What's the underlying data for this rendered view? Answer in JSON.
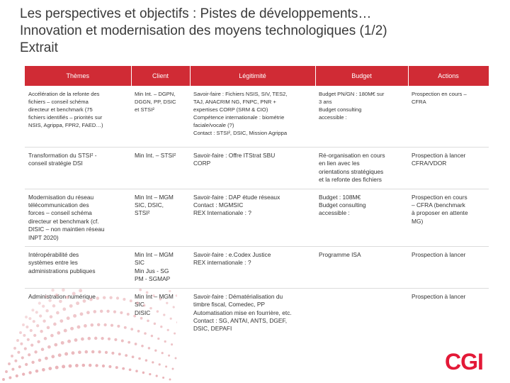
{
  "title": {
    "line1": "Les perspectives et objectifs : Pistes de développements…",
    "line2": "Innovation et modernisation des moyens technologiques (1/2)",
    "line3": "Extrait"
  },
  "table": {
    "headers": [
      "Thèmes",
      "Client",
      "Légitimité",
      "Budget",
      "Actions"
    ],
    "rows": [
      {
        "theme": [
          "Accélération de la refonte des",
          "fichiers – conseil schéma",
          "directeur et benchmark (75",
          "fichiers identifiés – priorités sur",
          "NSIS, Agrippa, FPR2, FAED…)"
        ],
        "client": [
          "Min Int. – DGPN,",
          "DGGN, PP, DSIC",
          "et STSI²"
        ],
        "legitimite": [
          "Savoir-faire : Fichiers NSIS, SIV, TES2,",
          "TAJ, ANACRIM NG, FNPC, PNR +",
          "expertises CORP (SRM & CIO)",
          "Compétence internationale : biométrie",
          "faciale/vocale (?)",
          "Contact : STSI², DSIC, Mission Agrippa"
        ],
        "budget": [
          "Budget PN/GN : 180M€ sur",
          "3 ans",
          "Budget consulting",
          "accessible :"
        ],
        "actions": [
          "Prospection en cours –",
          "CFRA"
        ]
      },
      {
        "theme": [
          "Transformation du STSI² -",
          "conseil stratégie DSI"
        ],
        "client": [
          "Min Int. – STSI²"
        ],
        "legitimite": [
          "Savoir-faire : Offre ITStrat SBU",
          "CORP"
        ],
        "budget": [
          "Ré-organisation en cours",
          "en lien avec les",
          "orientations stratégiques",
          "et la refonte des fichiers"
        ],
        "actions": [
          "Prospection à lancer",
          "CFRA/VDOR"
        ]
      },
      {
        "theme": [
          "Modernisation du réseau",
          "télécommunication des",
          "forces – conseil schéma",
          "directeur et benchmark (cf.",
          "DISIC – non maintien réseau",
          "INPT 2020)"
        ],
        "client": [
          "Min Int – MGM",
          "SIC, DSIC,",
          "STSI²"
        ],
        "legitimite": [
          "Savoir-faire : DAP étude réseaux",
          "Contact : MGMSIC",
          "REX Internationale : ?"
        ],
        "budget": [
          "Budget : 108M€",
          "Budget consulting",
          "accessible :"
        ],
        "actions": [
          "Prospection en cours",
          "– CFRA (benchmark",
          "à proposer en attente",
          "MG)"
        ]
      },
      {
        "theme": [
          "Intéropérabilité des",
          "systèmes entre les",
          "administrations publiques"
        ],
        "client": [
          "Min Int – MGM",
          "SIC",
          "Min Jus - SG",
          "PM - SGMAP"
        ],
        "legitimite": [
          "Savoir-faire : e.Codex Justice",
          "REX internationale : ?"
        ],
        "budget": [
          "Programme ISA"
        ],
        "actions": [
          "Prospection à lancer"
        ]
      },
      {
        "theme": [
          "Administration numérique"
        ],
        "client": [
          "Min Int – MGM",
          "SIC",
          "DISIC"
        ],
        "legitimite": [
          "Savoir-faire : Dématérialisation du",
          "timbre fiscal, Comedec, PP",
          "Automatisation mise en fourrière, etc.",
          "Contact : SG, ANTAI, ANTS, DGEF,",
          "DSIC, DEPAFI"
        ],
        "budget": [],
        "actions": [
          "Prospection à lancer"
        ]
      }
    ]
  },
  "logo": {
    "text": "CGI",
    "color": "#e31937"
  },
  "colors": {
    "header_bg": "#d02b35",
    "accent": "#e31937",
    "dots": "#e6a7ad"
  }
}
